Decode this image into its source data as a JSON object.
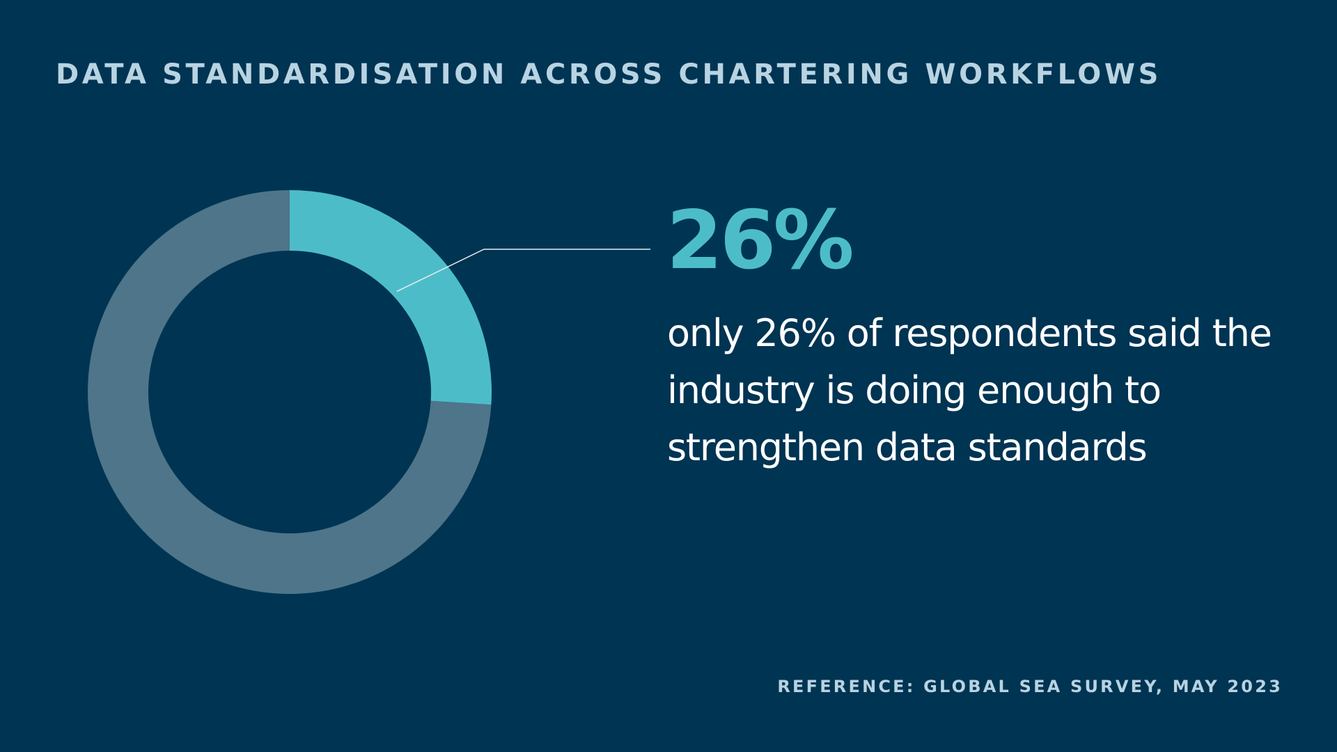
{
  "title": "DATA STANDARDISATION ACROSS CHARTERING WORKFLOWS",
  "chart_data": {
    "type": "pie",
    "variant": "donut",
    "title": "DATA STANDARDISATION ACROSS CHARTERING WORKFLOWS",
    "values": [
      26,
      74
    ],
    "unit": "%",
    "highlight_label": "26%",
    "annotation": "only 26% of respondents said the industry is doing enough to strengthen data standards",
    "colors": [
      "#4cbdc8",
      "#4e7589"
    ]
  },
  "reference": "REFERENCE: GLOBAL SEA SURVEY, MAY 2023",
  "colors": {
    "background": "#003453",
    "accent": "#4cbdc8",
    "track": "#4e7589",
    "title": "#b8d3e1",
    "text": "#ffffff",
    "leader_line": "#e6eef2"
  }
}
